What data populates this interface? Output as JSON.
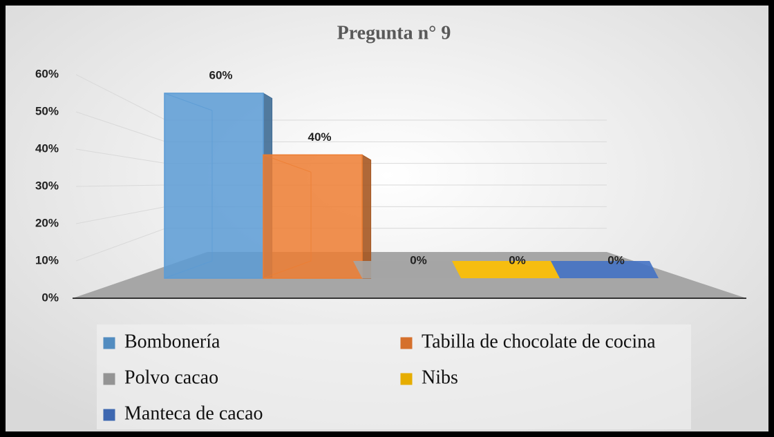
{
  "chart_data": {
    "type": "bar3d",
    "title": "Pregunta n° 9",
    "series": [
      {
        "name": "Bombonería",
        "color": "#5b9bd5",
        "values": [
          60
        ],
        "value_labels": [
          "60%"
        ]
      },
      {
        "name": "Tabilla de chocolate de cocina",
        "color": "#ed7d31",
        "values": [
          40
        ],
        "value_labels": [
          "40%"
        ]
      },
      {
        "name": "Polvo cacao",
        "color": "#a5a5a5",
        "values": [
          0
        ],
        "value_labels": [
          "0%"
        ]
      },
      {
        "name": "Nibs",
        "color": "#ffc000",
        "values": [
          0
        ],
        "value_labels": [
          "0%"
        ]
      },
      {
        "name": "Manteca de cacao",
        "color": "#4472c4",
        "values": [
          0
        ],
        "value_labels": [
          "0%"
        ]
      }
    ],
    "ylim": [
      0,
      60
    ],
    "yticks": [
      {
        "value": 0,
        "label": "0%"
      },
      {
        "value": 10,
        "label": "10%"
      },
      {
        "value": 20,
        "label": "20%"
      },
      {
        "value": 30,
        "label": "30%"
      },
      {
        "value": 40,
        "label": "40%"
      },
      {
        "value": 50,
        "label": "50%"
      },
      {
        "value": 60,
        "label": "60%"
      }
    ],
    "grid": true
  }
}
